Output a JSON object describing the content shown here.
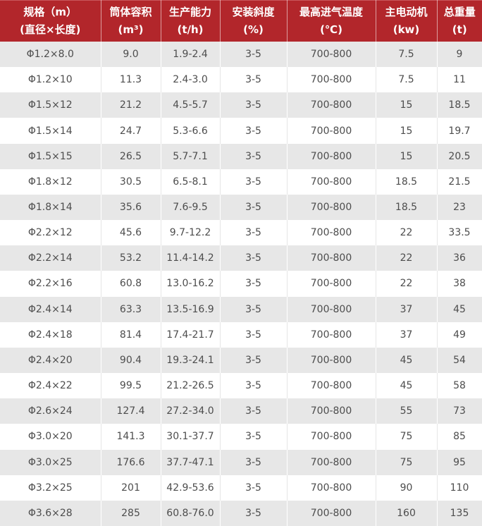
{
  "colors": {
    "header_bg": "#b2262b",
    "header_text": "#ffffff",
    "row_gray": "#e7e7e7",
    "row_white": "#ffffff",
    "body_text": "#4d4d4d"
  },
  "table": {
    "columns": [
      {
        "title": "规格（m）",
        "unit": "(直径×长度)"
      },
      {
        "title": "筒体容积",
        "unit": "(m³)"
      },
      {
        "title": "生产能力",
        "unit": "(t/h)"
      },
      {
        "title": "安装斜度",
        "unit": "(%)"
      },
      {
        "title": "最高进气温度",
        "unit": "(℃)"
      },
      {
        "title": "主电动机",
        "unit": "(kw)"
      },
      {
        "title": "总重量",
        "unit": "(t)"
      }
    ],
    "rows": [
      [
        "Φ1.2×8.0",
        "9.0",
        "1.9-2.4",
        "3-5",
        "700-800",
        "7.5",
        "9"
      ],
      [
        "Φ1.2×10",
        "11.3",
        "2.4-3.0",
        "3-5",
        "700-800",
        "7.5",
        "11"
      ],
      [
        "Φ1.5×12",
        "21.2",
        "4.5-5.7",
        "3-5",
        "700-800",
        "15",
        "18.5"
      ],
      [
        "Φ1.5×14",
        "24.7",
        "5.3-6.6",
        "3-5",
        "700-800",
        "15",
        "19.7"
      ],
      [
        "Φ1.5×15",
        "26.5",
        "5.7-7.1",
        "3-5",
        "700-800",
        "15",
        "20.5"
      ],
      [
        "Φ1.8×12",
        "30.5",
        "6.5-8.1",
        "3-5",
        "700-800",
        "18.5",
        "21.5"
      ],
      [
        "Φ1.8×14",
        "35.6",
        "7.6-9.5",
        "3-5",
        "700-800",
        "18.5",
        "23"
      ],
      [
        "Φ2.2×12",
        "45.6",
        "9.7-12.2",
        "3-5",
        "700-800",
        "22",
        "33.5"
      ],
      [
        "Φ2.2×14",
        "53.2",
        "11.4-14.2",
        "3-5",
        "700-800",
        "22",
        "36"
      ],
      [
        "Φ2.2×16",
        "60.8",
        "13.0-16.2",
        "3-5",
        "700-800",
        "22",
        "38"
      ],
      [
        "Φ2.4×14",
        "63.3",
        "13.5-16.9",
        "3-5",
        "700-800",
        "37",
        "45"
      ],
      [
        "Φ2.4×18",
        "81.4",
        "17.4-21.7",
        "3-5",
        "700-800",
        "37",
        "49"
      ],
      [
        "Φ2.4×20",
        "90.4",
        "19.3-24.1",
        "3-5",
        "700-800",
        "45",
        "54"
      ],
      [
        "Φ2.4×22",
        "99.5",
        "21.2-26.5",
        "3-5",
        "700-800",
        "45",
        "58"
      ],
      [
        "Φ2.6×24",
        "127.4",
        "27.2-34.0",
        "3-5",
        "700-800",
        "55",
        "73"
      ],
      [
        "Φ3.0×20",
        "141.3",
        "30.1-37.7",
        "3-5",
        "700-800",
        "75",
        "85"
      ],
      [
        "Φ3.0×25",
        "176.6",
        "37.7-47.1",
        "3-5",
        "700-800",
        "75",
        "95"
      ],
      [
        "Φ3.2×25",
        "201",
        "42.9-53.6",
        "3-5",
        "700-800",
        "90",
        "110"
      ],
      [
        "Φ3.6×28",
        "285",
        "60.8-76.0",
        "3-5",
        "700-800",
        "160",
        "135"
      ]
    ]
  }
}
